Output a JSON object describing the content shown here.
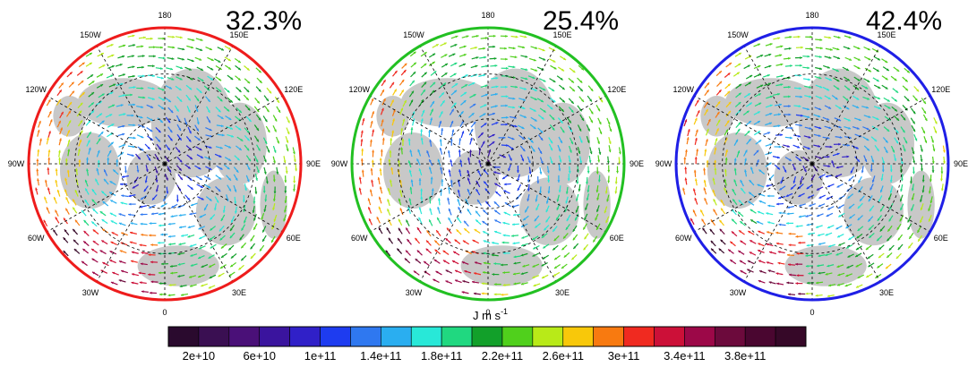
{
  "panels": [
    {
      "percent": "32.3%",
      "border_color": "#ee1c1c"
    },
    {
      "percent": "25.4%",
      "border_color": "#22c022"
    },
    {
      "percent": "42.4%",
      "border_color": "#1f1fe6"
    }
  ],
  "longitude_labels": [
    "180",
    "150E",
    "120E",
    "90E",
    "60E",
    "30E",
    "0",
    "30W",
    "60W",
    "90W",
    "120W",
    "150W"
  ],
  "colorbar": {
    "units": "J m s",
    "units_superscript": "-1",
    "tick_labels": [
      "2e+10",
      "6e+10",
      "1e+11",
      "1.4e+11",
      "1.8e+11",
      "2.2e+11",
      "2.6e+11",
      "3e+11",
      "3.4e+11",
      "3.8e+11"
    ],
    "colors": [
      "#2a0a2e",
      "#3a0f52",
      "#4a1078",
      "#3a149e",
      "#3020c8",
      "#1e3cf0",
      "#2f78f0",
      "#2aaef0",
      "#28e8d8",
      "#20d880",
      "#12a02a",
      "#50d01c",
      "#b8ea18",
      "#f8c80a",
      "#f87a10",
      "#f02a20",
      "#cc1038",
      "#9c0848",
      "#6c0a3c",
      "#4a0630",
      "#360828"
    ]
  }
}
